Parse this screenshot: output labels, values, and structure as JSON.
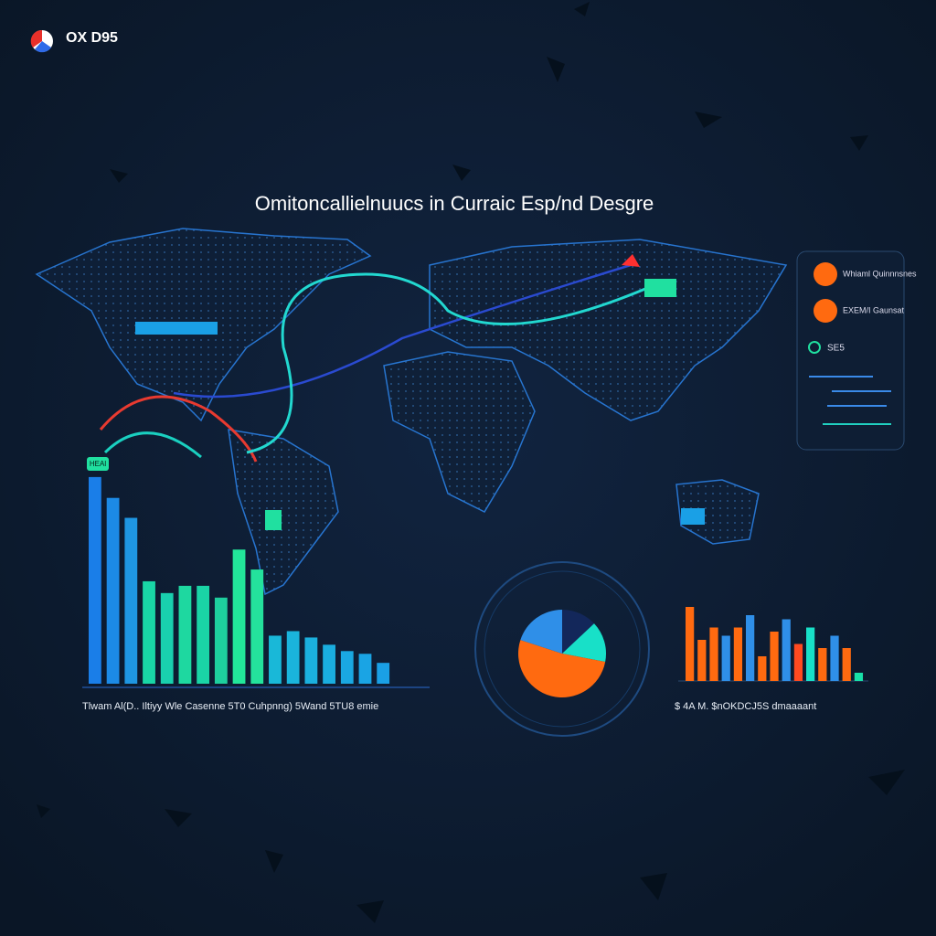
{
  "logo": {
    "name": "OX D95"
  },
  "title": "Omitoncallielnuucs in Curraic Esp/nd Desgre",
  "panel": {
    "items": [
      "Whiaml Quinnnsnes",
      "EXEM/I Gaunsat"
    ],
    "code": "SE5"
  },
  "badge": "HEAl",
  "chart_data": [
    {
      "type": "bar",
      "caption": "Tlwam Al(D.. Iltiyy Wle Casenne 5T0 Cuhpnng) 5Wand 5TU8 emie",
      "values": [
        228,
        205,
        183,
        113,
        100,
        108,
        108,
        95,
        148,
        126,
        53,
        58,
        51,
        43,
        36,
        33,
        23
      ],
      "colors": [
        "#1a7ee8",
        "#1c8ae6",
        "#1f96e2",
        "#19d6a6",
        "#19d0ae",
        "#1ed8a0",
        "#1ad4a6",
        "#1ecf9e",
        "#22e69a",
        "#24e29c",
        "#19b8d8",
        "#1ab4dc",
        "#1bb0de",
        "#1aaee0",
        "#1aa8e2",
        "#1aa4e4",
        "#1aa0e6"
      ],
      "ylim": [
        0,
        240
      ]
    },
    {
      "type": "pie",
      "values": [
        13,
        15,
        52,
        20
      ],
      "colors": [
        "#13275a",
        "#18e0c8",
        "#ff6a10",
        "#2f8fe8"
      ]
    },
    {
      "type": "bar",
      "caption": "$ 4A M. $nOKDCJ5S dmaaaant",
      "values": [
        90,
        50,
        65,
        55,
        65,
        80,
        30,
        60,
        75,
        45,
        65,
        40,
        55,
        40,
        10
      ],
      "colors": [
        "#ff6a10",
        "#ff6a10",
        "#ff6a10",
        "#2f8fe8",
        "#ff6a10",
        "#2f8fe8",
        "#ff6a10",
        "#ff6a10",
        "#2f8fe8",
        "#ff4a20",
        "#18e0c8",
        "#ff6a10",
        "#2f8fe8",
        "#ff6a10",
        "#18e0a8"
      ],
      "ylim": [
        0,
        100
      ]
    }
  ]
}
